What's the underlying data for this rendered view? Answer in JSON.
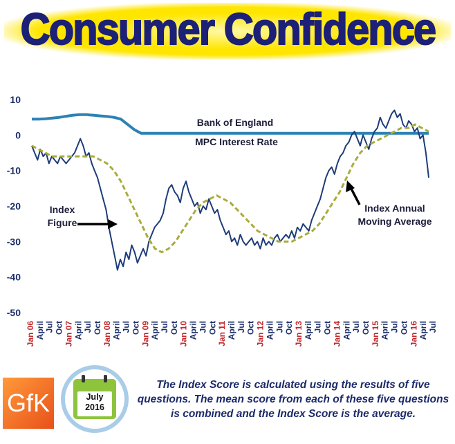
{
  "header": {
    "title": "Consumer Confidence"
  },
  "colors": {
    "index": "#1d3c78",
    "moving_average": "#a9ac3c",
    "interest_rate": "#2c82b4",
    "title": "#1c2077",
    "title_glow": "#ffe600",
    "tick_red": "#c0282d",
    "tick_navy": "#1c2f6b"
  },
  "footer": {
    "caption": "The Index Score is calculated using the results of five questions. The mean score from each of these five questions is combined and the Index Score is the average.",
    "logo_text": "GfK",
    "calendar_month": "July",
    "calendar_year": "2016"
  },
  "chart_data": {
    "type": "line",
    "ylim": [
      -50,
      10
    ],
    "yticks": [
      "10",
      "0",
      "-10",
      "-20",
      "-30",
      "-40",
      "-50"
    ],
    "xticks": [
      {
        "label": "Jan 06",
        "red": true
      },
      {
        "label": "April",
        "red": false
      },
      {
        "label": "Jul",
        "red": false
      },
      {
        "label": "Oct",
        "red": false
      },
      {
        "label": "Jan 07",
        "red": true
      },
      {
        "label": "April",
        "red": false
      },
      {
        "label": "Jul",
        "red": false
      },
      {
        "label": "Oct",
        "red": false
      },
      {
        "label": "Jan 08",
        "red": true
      },
      {
        "label": "April",
        "red": false
      },
      {
        "label": "Jul",
        "red": false
      },
      {
        "label": "Oct",
        "red": false
      },
      {
        "label": "Jan 09",
        "red": true
      },
      {
        "label": "April",
        "red": false
      },
      {
        "label": "Jul",
        "red": false
      },
      {
        "label": "Oct",
        "red": false
      },
      {
        "label": "Jan 10",
        "red": true
      },
      {
        "label": "April",
        "red": false
      },
      {
        "label": "Jul",
        "red": false
      },
      {
        "label": "Oct",
        "red": false
      },
      {
        "label": "Jan 11",
        "red": true
      },
      {
        "label": "April",
        "red": false
      },
      {
        "label": "Jul",
        "red": false
      },
      {
        "label": "Oct",
        "red": false
      },
      {
        "label": "Jan 12",
        "red": true
      },
      {
        "label": "April",
        "red": false
      },
      {
        "label": "Jul",
        "red": false
      },
      {
        "label": "Oct",
        "red": false
      },
      {
        "label": "Jan 13",
        "red": true
      },
      {
        "label": "April",
        "red": false
      },
      {
        "label": "Jul",
        "red": false
      },
      {
        "label": "Oct",
        "red": false
      },
      {
        "label": "Jan 14",
        "red": true
      },
      {
        "label": "April",
        "red": false
      },
      {
        "label": "Jul",
        "red": false
      },
      {
        "label": "Oct",
        "red": false
      },
      {
        "label": "Jan 15",
        "red": true
      },
      {
        "label": "April",
        "red": false
      },
      {
        "label": "Jul",
        "red": false
      },
      {
        "label": "Oct",
        "red": false
      },
      {
        "label": "Jan 16",
        "red": true
      },
      {
        "label": "April",
        "red": false
      },
      {
        "label": "Jul",
        "red": false
      }
    ],
    "series": [
      {
        "name": "Index Figure",
        "values": [
          -3,
          -5,
          -7,
          -4,
          -6,
          -5,
          -8,
          -6,
          -7,
          -8,
          -6,
          -7,
          -8,
          -7,
          -6,
          -5,
          -3,
          -1,
          -3,
          -6,
          -5,
          -8,
          -10,
          -12,
          -15,
          -18,
          -21,
          -26,
          -30,
          -34,
          -38,
          -35,
          -37,
          -33,
          -35,
          -31,
          -33,
          -36,
          -34,
          -32,
          -34,
          -30,
          -28,
          -26,
          -25,
          -24,
          -22,
          -18,
          -15,
          -14,
          -16,
          -17,
          -19,
          -15,
          -13,
          -16,
          -18,
          -20,
          -19,
          -22,
          -20,
          -21,
          -18,
          -20,
          -22,
          -21,
          -24,
          -26,
          -28,
          -27,
          -30,
          -29,
          -31,
          -28,
          -30,
          -31,
          -30,
          -29,
          -31,
          -30,
          -32,
          -29,
          -31,
          -30,
          -31,
          -29,
          -28,
          -30,
          -29,
          -28,
          -29,
          -27,
          -29,
          -26,
          -27,
          -25,
          -26,
          -27,
          -24,
          -22,
          -20,
          -18,
          -15,
          -12,
          -10,
          -9,
          -11,
          -8,
          -6,
          -5,
          -3,
          -2,
          0,
          1,
          -1,
          -3,
          0,
          -2,
          -4,
          -1,
          1,
          2,
          5,
          3,
          2,
          4,
          6,
          7,
          5,
          6,
          3,
          2,
          4,
          3,
          1,
          2,
          -1,
          0,
          -5,
          -12
        ]
      },
      {
        "name": "Index Annual Moving Average",
        "values": [
          -3,
          -4,
          -5,
          -6,
          -6,
          -6,
          -6,
          -6,
          -6,
          -6,
          -7,
          -8,
          -10,
          -13,
          -17,
          -21,
          -25,
          -29,
          -32,
          -33,
          -32,
          -30,
          -27,
          -24,
          -21,
          -19,
          -18,
          -17,
          -18,
          -19,
          -21,
          -23,
          -25,
          -27,
          -28,
          -29,
          -30,
          -30,
          -30,
          -29,
          -28,
          -27,
          -25,
          -22,
          -19,
          -16,
          -12,
          -8,
          -5,
          -3,
          -2,
          -1,
          0,
          1,
          2,
          2,
          3,
          2,
          1
        ]
      },
      {
        "name": "Bank of England MPC Interest Rate",
        "values": [
          4.5,
          4.5,
          4.6,
          4.8,
          5.0,
          5.3,
          5.6,
          5.75,
          5.75,
          5.6,
          5.4,
          5.25,
          5.0,
          4.5,
          3.0,
          1.5,
          0.5,
          0.5,
          0.5,
          0.5,
          0.5,
          0.5,
          0.5,
          0.5,
          0.5,
          0.5,
          0.5,
          0.5,
          0.5,
          0.5,
          0.5,
          0.5,
          0.5,
          0.5,
          0.5,
          0.5,
          0.5,
          0.5,
          0.5,
          0.5,
          0.5,
          0.5,
          0.5,
          0.5,
          0.5,
          0.5,
          0.5,
          0.5,
          0.5,
          0.5,
          0.5,
          0.5,
          0.5,
          0.5,
          0.5,
          0.5,
          0.5,
          0.5,
          0.5
        ]
      }
    ],
    "annotations": {
      "interest_rate_line1": "Bank of England",
      "interest_rate_line2": "MPC Interest Rate",
      "index_line1": "Index",
      "index_line2": "Figure",
      "ma_line1": "Index Annual",
      "ma_line2": "Moving Average"
    },
    "grid": false,
    "legend": "none"
  }
}
